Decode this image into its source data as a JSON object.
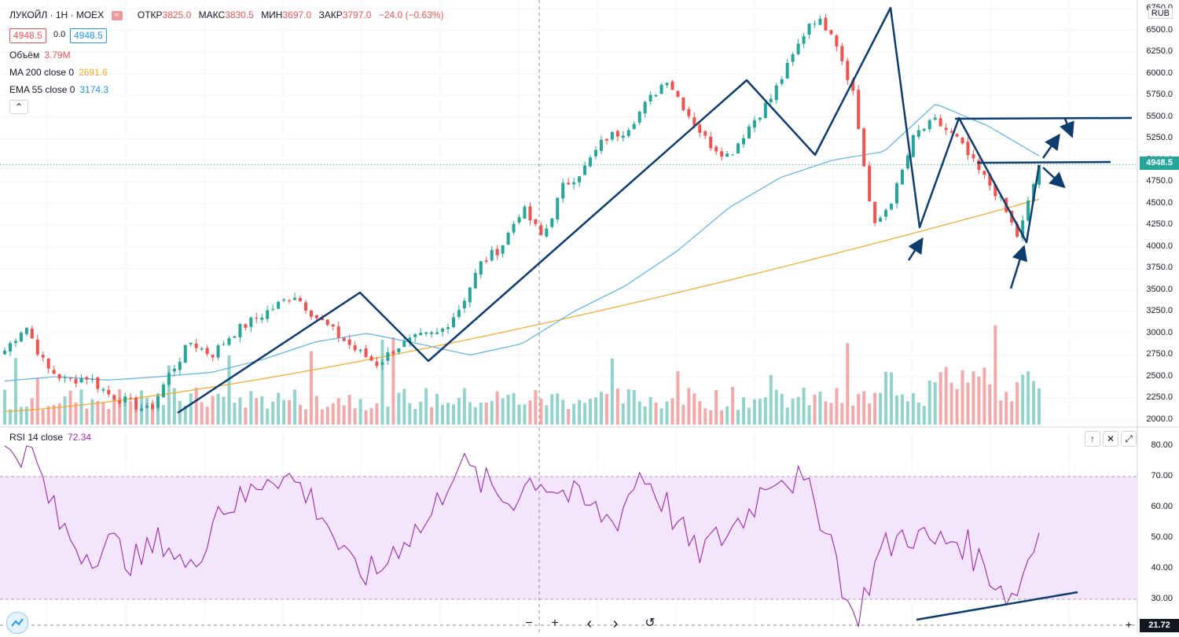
{
  "header": {
    "symbol": "ЛУКОЙЛ · 1H · MOEX",
    "ohlc": [
      {
        "label": "ОТКР",
        "value": "3825.0"
      },
      {
        "label": "МАКС",
        "value": "3830.5"
      },
      {
        "label": "МИН",
        "value": "3697.0"
      },
      {
        "label": "ЗАКР",
        "value": "3797.0"
      }
    ],
    "change": "−24.0 (−0.63%)",
    "sell_price": "4948.5",
    "spread": "0.0",
    "buy_price": "4948.5"
  },
  "indicators": {
    "volume": {
      "name": "Объём",
      "value": "3.79M"
    },
    "ma200": {
      "name": "MA 200 close 0",
      "value": "2691.6"
    },
    "ema55": {
      "name": "EMA 55 close 0",
      "value": "3174.3"
    },
    "rsi": {
      "name": "RSI 14 close",
      "value": "72.34"
    }
  },
  "price_axis": {
    "currency": "RUB",
    "labels": [
      "6750.0",
      "6500.0",
      "6250.0",
      "6000.0",
      "5750.0",
      "5500.0",
      "5250.0",
      "5000.0",
      "4750.0",
      "4500.0",
      "4250.0",
      "4000.0",
      "3750.0",
      "3500.0",
      "3250.0",
      "3000.0",
      "2750.0",
      "2500.0",
      "2250.0",
      "2000.0"
    ],
    "last_price": "4948.5"
  },
  "rsi_axis": {
    "labels": [
      "80.00",
      "70.00",
      "60.00",
      "50.00",
      "40.00",
      "30.00"
    ],
    "crosshair_value": "21.72"
  },
  "icons": {
    "compare": "compare-icon",
    "collapse": "chevron-up-icon",
    "pane_up": "arrow-up-icon",
    "pane_close": "close-icon",
    "pane_maximize": "maximize-icon",
    "logo": "tradingview-logo-icon",
    "zoom_out": "minus-icon",
    "zoom_in": "plus-icon",
    "scroll_left": "chevron-left-icon",
    "scroll_right": "chevron-right-icon",
    "reset": "reset-icon",
    "axis_plus": "plus-icon"
  },
  "nav": {
    "minus": "−",
    "plus": "+",
    "left": "‹",
    "right": "›",
    "reset": "↺"
  },
  "colors": {
    "up": "#26a69a",
    "down": "#ef5350",
    "ma200": "#f5a623",
    "ema55": "#5bb2e6",
    "rsi": "#9c27b0",
    "rsi_band": "#f3e5fc",
    "drawing": "#0d3c6e"
  },
  "chart_data": {
    "type": "candlestick",
    "price_range": [
      1950,
      6800
    ],
    "waypoints_close": [
      2800,
      3100,
      2600,
      2450,
      2500,
      2300,
      2200,
      2100,
      2550,
      2900,
      2750,
      3000,
      3150,
      3300,
      3450,
      3200,
      3000,
      2800,
      2650,
      2850,
      2950,
      3000,
      3300,
      3800,
      4000,
      4450,
      4100,
      4700,
      4900,
      5250,
      5350,
      5650,
      5950,
      5550,
      5200,
      5050,
      5400,
      5700,
      6150,
      6650,
      6500,
      5800,
      4200,
      4600,
      5300,
      5450,
      5250,
      4900,
      4600,
      4100,
      4950
    ],
    "ma200_range": [
      2100,
      4550
    ],
    "ema55_path": [
      2450,
      2500,
      2460,
      2500,
      2550,
      2700,
      2900,
      3000,
      2880,
      2750,
      2880,
      3250,
      3550,
      3950,
      4450,
      4800,
      5000,
      5100,
      5650,
      5400,
      5050
    ],
    "rsi_range": [
      20,
      85
    ],
    "rsi_overbought": 70,
    "rsi_oversold": 30,
    "rsi_waypoints": [
      80,
      78,
      55,
      45,
      48,
      42,
      50,
      38,
      60,
      62,
      72,
      68,
      58,
      40,
      38,
      50,
      55,
      75,
      68,
      62,
      70,
      65,
      60,
      55,
      72,
      60,
      45,
      50,
      58,
      72,
      68,
      55,
      22,
      45,
      52,
      48,
      50,
      40,
      30,
      52
    ]
  }
}
